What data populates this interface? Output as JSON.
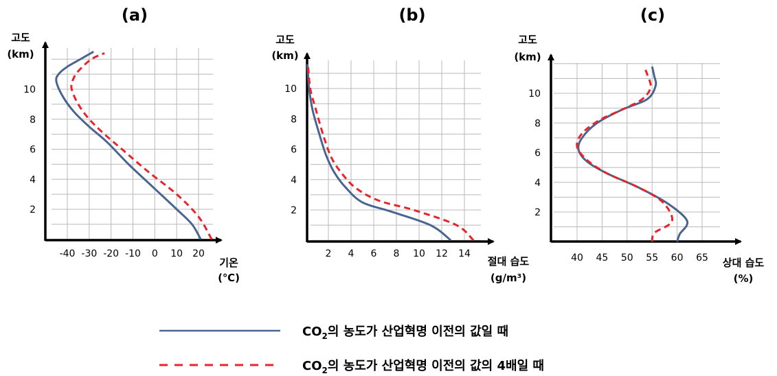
{
  "colors": {
    "baseline": "#4a6490",
    "quadrupled": "#e8242b",
    "grid": "#b8b8b8",
    "axis": "#000000"
  },
  "chart_data": [
    {
      "type": "line",
      "panel_label": "(a)",
      "ylabel_line1": "고도",
      "ylabel_line2": "(km)",
      "xlabel_line1": "기온",
      "xlabel_line2": "(℃)",
      "x_ticks": [
        "-40",
        "-30",
        "-20",
        "-10",
        "0",
        "10",
        "20"
      ],
      "y_ticks": [
        "2",
        "4",
        "6",
        "8",
        "10"
      ],
      "xlim": [
        -55,
        28
      ],
      "ylim": [
        -2,
        12.5
      ],
      "series": [
        {
          "key": "baseline",
          "points": [
            [
              21,
              0
            ],
            [
              17,
              1
            ],
            [
              10,
              2
            ],
            [
              -1,
              3.5
            ],
            [
              -12,
              5
            ],
            [
              -22,
              6.5
            ],
            [
              -30,
              7.5
            ],
            [
              -37,
              8.5
            ],
            [
              -42,
              9.5
            ],
            [
              -45,
              10.5
            ],
            [
              -44,
              11
            ],
            [
              -40,
              11.5
            ],
            [
              -34,
              12
            ],
            [
              -28,
              12.5
            ]
          ]
        },
        {
          "key": "quadrupled",
          "points": [
            [
              26,
              0
            ],
            [
              20,
              1.5
            ],
            [
              10,
              3
            ],
            [
              -3,
              4.5
            ],
            [
              -15,
              6
            ],
            [
              -23,
              7
            ],
            [
              -30,
              8
            ],
            [
              -35,
              9
            ],
            [
              -38,
              10
            ],
            [
              -37.5,
              10.6
            ],
            [
              -35,
              11.2
            ],
            [
              -29,
              12
            ],
            [
              -23,
              12.4
            ]
          ]
        }
      ]
    },
    {
      "type": "line",
      "panel_label": "(b)",
      "ylabel_line1": "고도",
      "ylabel_line2": "(km)",
      "xlabel_line1": "절대 습도",
      "xlabel_line2": "(g/m³)",
      "x_ticks": [
        "2",
        "4",
        "6",
        "8",
        "10",
        "12",
        "14"
      ],
      "y_ticks": [
        "2",
        "4",
        "6",
        "8",
        "10"
      ],
      "xlim": [
        0,
        16
      ],
      "ylim": [
        -2,
        12
      ],
      "series": [
        {
          "key": "baseline",
          "points": [
            [
              12.8,
              0
            ],
            [
              11,
              1
            ],
            [
              7.5,
              1.9
            ],
            [
              5,
              2.5
            ],
            [
              3.5,
              3.5
            ],
            [
              2.5,
              4.5
            ],
            [
              1.8,
              5.6
            ],
            [
              1.2,
              7
            ],
            [
              0.6,
              8.6
            ],
            [
              0.3,
              10
            ],
            [
              0.15,
              11.6
            ]
          ]
        },
        {
          "key": "quadrupled",
          "points": [
            [
              14.8,
              0
            ],
            [
              13.3,
              1
            ],
            [
              9.5,
              2
            ],
            [
              6.5,
              2.6
            ],
            [
              4.5,
              3.4
            ],
            [
              3.3,
              4.3
            ],
            [
              2.3,
              5.4
            ],
            [
              1.6,
              6.8
            ],
            [
              0.9,
              8.6
            ],
            [
              0.4,
              10
            ],
            [
              0.2,
              11.6
            ]
          ]
        }
      ]
    },
    {
      "type": "line",
      "panel_label": "(c)",
      "ylabel_line1": "고도",
      "ylabel_line2": "(km)",
      "xlabel_line1": "상대 습도",
      "xlabel_line2": "(%)",
      "x_ticks": [
        "40",
        "45",
        "50",
        "55",
        "60",
        "65"
      ],
      "y_ticks": [
        "2",
        "4",
        "6",
        "8",
        "10"
      ],
      "xlim": [
        35,
        69
      ],
      "ylim": [
        -2,
        12
      ],
      "series": [
        {
          "key": "baseline",
          "points": [
            [
              60,
              0
            ],
            [
              60.5,
              0.5
            ],
            [
              62,
              1.4
            ],
            [
              58,
              2.6
            ],
            [
              52,
              3.7
            ],
            [
              46,
              4.6
            ],
            [
              42,
              5.4
            ],
            [
              40.3,
              6.2
            ],
            [
              41,
              7
            ],
            [
              44,
              8
            ],
            [
              49,
              8.9
            ],
            [
              54,
              9.6
            ],
            [
              55.7,
              10.5
            ],
            [
              55.4,
              11.2
            ],
            [
              55,
              11.8
            ]
          ]
        },
        {
          "key": "quadrupled",
          "points": [
            [
              55,
              0
            ],
            [
              55.5,
              0.6
            ],
            [
              59,
              1.4
            ],
            [
              57,
              2.7
            ],
            [
              52,
              3.7
            ],
            [
              46,
              4.6
            ],
            [
              42,
              5.5
            ],
            [
              40,
              6.4
            ],
            [
              41,
              7.3
            ],
            [
              44.5,
              8.2
            ],
            [
              49,
              8.9
            ],
            [
              53,
              9.6
            ],
            [
              54.7,
              10.4
            ],
            [
              54,
              11.3
            ],
            [
              53.5,
              11.7
            ]
          ]
        }
      ]
    }
  ],
  "legend": [
    {
      "key": "baseline",
      "text_prefix": "CO",
      "text_sub": "2",
      "text_suffix": "의 농도가 산업혁명 이전의 값일 때"
    },
    {
      "key": "quadrupled",
      "text_prefix": "CO",
      "text_sub": "2",
      "text_suffix": "의 농도가 산업혁명 이전의 값의 4배일 때"
    }
  ]
}
